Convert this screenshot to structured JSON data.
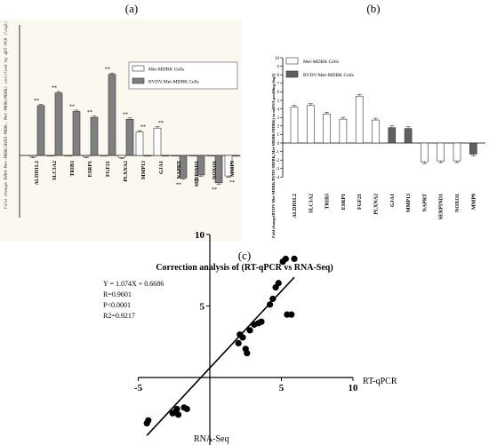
{
  "panels": {
    "a": "(a)",
    "b": "(b)",
    "c": "(c)"
  },
  "chart_data": [
    {
      "type": "bar",
      "panel": "(a)",
      "ylabel": "Fold change BVDV-Met-MDBK/BVDV-MDBK, Met-MDBK/MDBK) verified by qRT-PCR (log2)",
      "ylim": [
        -3.5,
        10
      ],
      "categories": [
        "ALDH1L2",
        "SLC3A2",
        "TRIB3",
        "ESRP1",
        "FGF21",
        "PLXNA2",
        "MMP13",
        "GJA1",
        "NAPRT",
        "SERPIND1",
        "NOXO1",
        "MMP9"
      ],
      "series": [
        {
          "name": "Met-MDBK Cells",
          "color": "#ffffff",
          "values": [
            -0.1,
            0,
            0,
            -0.1,
            0,
            -0.2,
            2.4,
            2.8,
            0,
            0,
            0,
            -2.1
          ]
        },
        {
          "name": "BVDV-Met-MDBK Cells",
          "color": "#808080",
          "values": [
            5.1,
            6.4,
            4.5,
            3.9,
            8.3,
            3.7,
            0,
            0,
            -2.3,
            -2.0,
            -2.8,
            0
          ]
        }
      ],
      "annotations": [
        "**",
        "**",
        "**",
        "**",
        "**",
        "**",
        "**",
        "**",
        "**",
        "**",
        "**",
        "**"
      ],
      "legend": "top-right",
      "grid": false
    },
    {
      "type": "bar",
      "panel": "(b)",
      "ylabel": "Fold change(BVDV-Met-MDBK/BVDV-MDBK,Met-MDBK/MDBK) in mRNA profiling (log2)",
      "ylim": [
        -4,
        10
      ],
      "yticks": [
        -4,
        -3,
        -2,
        -1,
        0,
        1,
        2,
        3,
        4,
        5,
        6,
        7,
        8,
        9,
        10
      ],
      "categories": [
        "ALDH1L2",
        "SLC3A2",
        "TRIB3",
        "ESRP1",
        "FGF21",
        "PLXNA2",
        "GJA1",
        "MMP13",
        "NAPRT",
        "SERPIND1",
        "NOXO1",
        "MMP9"
      ],
      "series": [
        {
          "name": "Met-MDBK Cells",
          "color": "#ffffff",
          "values": [
            4.2,
            4.4,
            3.4,
            2.8,
            5.5,
            2.7,
            null,
            null,
            -2.2,
            -2.1,
            -2.1,
            null
          ]
        },
        {
          "name": "BVDV-Met-MDBK Cells",
          "color": "#606060",
          "values": [
            null,
            null,
            null,
            null,
            null,
            null,
            1.8,
            1.7,
            null,
            null,
            null,
            -1.3
          ]
        }
      ],
      "legend": "top-right",
      "grid": false
    },
    {
      "type": "scatter",
      "panel": "(c)",
      "title": "Correction analysis of (RT-qPCR vs RNA-Seq)",
      "xlabel": "RNA-Seq",
      "ylabel": "RT-qPCR",
      "xlim": [
        -5,
        10
      ],
      "ylim": [
        -5,
        10
      ],
      "xticks": [
        -5,
        5,
        10
      ],
      "yticks": [
        -5,
        5,
        10
      ],
      "stats": [
        "Y = 1.074X + 0.6686",
        "R=0.9601",
        "P<0.0001",
        "R2=0.9217"
      ],
      "fit": {
        "slope": 1.074,
        "intercept": 0.6686
      },
      "points": [
        [
          -4.4,
          -3.2
        ],
        [
          -4.3,
          -3.0
        ],
        [
          -2.6,
          -2.5
        ],
        [
          -2.4,
          -2.4
        ],
        [
          -2.3,
          -2.2
        ],
        [
          -2.2,
          -2.6
        ],
        [
          -1.8,
          -2.1
        ],
        [
          -1.6,
          -2.2
        ],
        [
          2.0,
          2.4
        ],
        [
          2.1,
          3.0
        ],
        [
          2.3,
          2.8
        ],
        [
          2.5,
          2.0
        ],
        [
          2.6,
          1.7
        ],
        [
          2.8,
          3.3
        ],
        [
          3.1,
          3.7
        ],
        [
          3.4,
          3.8
        ],
        [
          3.6,
          3.9
        ],
        [
          4.2,
          5.1
        ],
        [
          4.4,
          5.5
        ],
        [
          4.6,
          6.3
        ],
        [
          4.8,
          6.6
        ],
        [
          5.1,
          8.1
        ],
        [
          5.3,
          8.3
        ],
        [
          5.4,
          4.4
        ],
        [
          5.7,
          4.4
        ],
        [
          5.9,
          8.3
        ]
      ]
    }
  ]
}
